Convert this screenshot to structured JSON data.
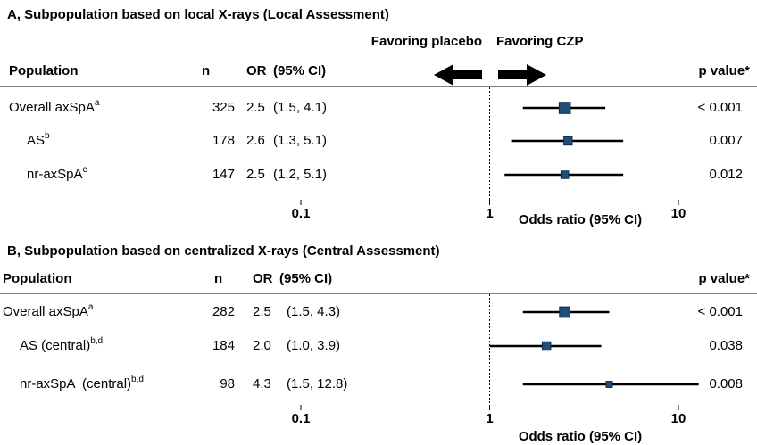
{
  "chart_data": [
    {
      "type": "forest",
      "title": "A, Subpopulation based on local X-rays (Local Assessment)",
      "annotations": [
        "Favoring placebo",
        "Favoring CZP"
      ],
      "headers": {
        "population": "Population",
        "n": "n",
        "or": "OR",
        "ci": "(95% CI)",
        "p_value": "p value*"
      },
      "rows": [
        {
          "population": "Overall axSpA",
          "sup": "a",
          "n": 325,
          "or": 2.5,
          "or_label": "2.5",
          "ci_low": 1.5,
          "ci_high": 4.1,
          "ci_label": "(1.5, 4.1)",
          "p_value": "< 0.001"
        },
        {
          "population": "AS",
          "sup": "b",
          "n": 178,
          "or": 2.6,
          "or_label": "2.6",
          "ci_low": 1.3,
          "ci_high": 5.1,
          "ci_label": "(1.3, 5.1)",
          "p_value": "0.007"
        },
        {
          "population": "nr-axSpA",
          "sup": "c",
          "n": 147,
          "or": 2.5,
          "or_label": "2.5",
          "ci_low": 1.2,
          "ci_high": 5.1,
          "ci_label": "(1.2, 5.1)",
          "p_value": "0.012"
        }
      ],
      "xlabel": "Odds ratio (95% CI)",
      "log_x": true,
      "xlim": [
        0.1,
        10
      ],
      "xticks": [
        0.1,
        1,
        10
      ],
      "color": "#1f4e79"
    },
    {
      "type": "forest",
      "title": "B, Subpopulation based on centralized X-rays (Central Assessment)",
      "headers": {
        "population": "Population",
        "n": "n",
        "or": "OR",
        "ci": "(95% CI)",
        "p_value": "p value*"
      },
      "rows": [
        {
          "population": "Overall axSpA",
          "sup": "a",
          "n": 282,
          "or": 2.5,
          "or_label": "2.5",
          "ci_low": 1.5,
          "ci_high": 4.3,
          "ci_label": "(1.5, 4.3)",
          "p_value": "< 0.001"
        },
        {
          "population": "AS (central)",
          "sup": "b,d",
          "n": 184,
          "or": 2.0,
          "or_label": "2.0",
          "ci_low": 1.0,
          "ci_high": 3.9,
          "ci_label": "(1.0, 3.9)",
          "p_value": "0.038"
        },
        {
          "population": "nr-axSpA  (central)",
          "sup": "b,d",
          "n": 98,
          "or": 4.3,
          "or_label": "4.3",
          "ci_low": 1.5,
          "ci_high": 12.8,
          "ci_label": "(1.5, 12.8)",
          "p_value": "0.008"
        }
      ],
      "xlabel": "Odds ratio (95% CI)",
      "log_x": true,
      "xlim": [
        0.1,
        10
      ],
      "xticks": [
        0.1,
        1,
        10
      ],
      "color": "#1f4e79"
    }
  ]
}
